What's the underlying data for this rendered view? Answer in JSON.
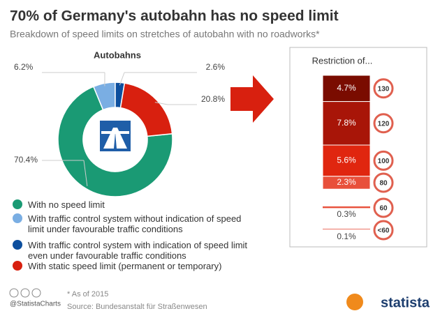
{
  "header": {
    "title": "70% of Germany's autobahn has no speed limit",
    "subtitle": "Breakdown of speed limits on stretches of autobahn with no roadworks*"
  },
  "chart_data": [
    {
      "type": "donut",
      "title": "Autobahns",
      "categories": [
        "With no speed limit",
        "With traffic control system without indication of speed limit under favourable traffic conditions",
        "With traffic control system with indication of speed limit even under favourable traffic conditions",
        "With static speed limit (permanent or temporary)"
      ],
      "values": [
        70.4,
        6.2,
        2.6,
        20.8
      ],
      "value_labels": [
        "70.4%",
        "6.2%",
        "2.6%",
        "20.8%"
      ],
      "colors": [
        "#1a9a74",
        "#7aaee3",
        "#0d4f9e",
        "#d8200f"
      ]
    },
    {
      "type": "stacked-column",
      "title": "Restriction of...",
      "categories": [
        "130",
        "120",
        "100",
        "80",
        "60",
        "<60"
      ],
      "values": [
        4.7,
        7.8,
        5.6,
        2.3,
        0.3,
        0.1
      ],
      "value_labels": [
        "4.7%",
        "7.8%",
        "5.6%",
        "2.3%",
        "0.3%",
        "0.1%"
      ],
      "colors": [
        "#7a0c00",
        "#a81508",
        "#e0260f",
        "#e8503b",
        "#e8503b",
        "#e8503b"
      ]
    }
  ],
  "footer": {
    "note": "* As of 2015",
    "source": "Source: Bundesanstalt für Straßenwesen",
    "handle": "@StatistaCharts",
    "brand": "statista"
  }
}
